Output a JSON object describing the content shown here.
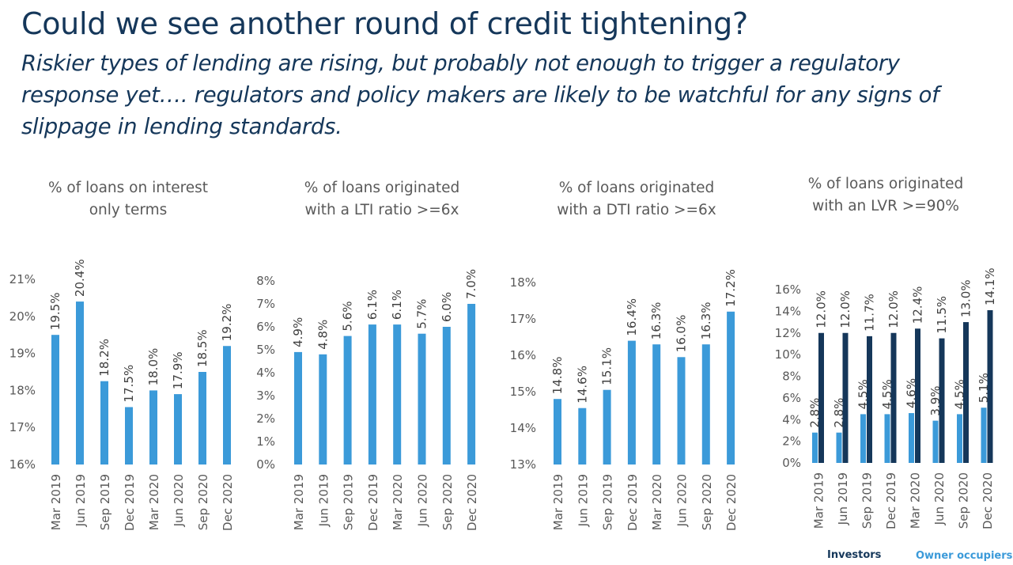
{
  "header": {
    "title": "Could we see another round of credit tightening?",
    "subtitle": "Riskier types of lending are rising, but probably not enough to trigger a regulatory response yet….  regulators and policy makers are likely to be watchful for any signs of slippage in lending standards."
  },
  "colors": {
    "light_blue": "#3b9ad9",
    "dark_navy": "#15375a",
    "text": "#595959"
  },
  "chart_data": [
    {
      "type": "bar",
      "title": [
        "% of loans on interest",
        "only terms"
      ],
      "categories": [
        "Mar 2019",
        "Jun 2019",
        "Sep 2019",
        "Dec 2019",
        "Mar 2020",
        "Jun 2020",
        "Sep 2020",
        "Dec 2020"
      ],
      "values": [
        19.5,
        20.4,
        18.25,
        17.55,
        18.0,
        17.9,
        18.5,
        19.2
      ],
      "labels": [
        "19.5%",
        "20.4%",
        "18.2%",
        "17.5%",
        "18.0%",
        "17.9%",
        "18.5%",
        "19.2%"
      ],
      "ylim": [
        16,
        21
      ],
      "yticks": [
        16,
        17,
        18,
        19,
        20,
        21
      ],
      "ytick_labels": [
        "16%",
        "17%",
        "18%",
        "19%",
        "20%",
        "21%"
      ]
    },
    {
      "type": "bar",
      "title": [
        "% of loans originated",
        "with a LTI ratio >=6x"
      ],
      "categories": [
        "Mar 2019",
        "Jun 2019",
        "Sep 2019",
        "Dec 2019",
        "Mar 2020",
        "Jun 2020",
        "Sep 2020",
        "Dec 2020"
      ],
      "values": [
        4.9,
        4.8,
        5.6,
        6.1,
        6.1,
        5.7,
        6.0,
        7.0
      ],
      "labels": [
        "4.9%",
        "4.8%",
        "5.6%",
        "6.1%",
        "6.1%",
        "5.7%",
        "6.0%",
        "7.0%"
      ],
      "ylim": [
        0,
        8
      ],
      "yticks": [
        0,
        1,
        2,
        3,
        4,
        5,
        6,
        7,
        8
      ],
      "ytick_labels": [
        "0%",
        "1%",
        "2%",
        "3%",
        "4%",
        "5%",
        "6%",
        "7%",
        "8%"
      ]
    },
    {
      "type": "bar",
      "title": [
        "% of loans originated",
        "with a DTI ratio >=6x"
      ],
      "categories": [
        "Mar 2019",
        "Jun 2019",
        "Sep 2019",
        "Dec 2019",
        "Mar 2020",
        "Jun 2020",
        "Sep 2020",
        "Dec 2020"
      ],
      "values": [
        14.8,
        14.55,
        15.05,
        16.4,
        16.3,
        15.95,
        16.3,
        17.2
      ],
      "labels": [
        "14.8%",
        "14.6%",
        "15.1%",
        "16.4%",
        "16.3%",
        "16.0%",
        "16.3%",
        "17.2%"
      ],
      "ylim": [
        13,
        18
      ],
      "yticks": [
        13,
        14,
        15,
        16,
        17,
        18
      ],
      "ytick_labels": [
        "13%",
        "14%",
        "15%",
        "16%",
        "17%",
        "18%"
      ]
    },
    {
      "type": "bar",
      "title": [
        "% of loans originated",
        "with an LVR >=90%"
      ],
      "categories": [
        "Mar 2019",
        "Jun 2019",
        "Sep 2019",
        "Dec 2019",
        "Mar 2020",
        "Jun 2020",
        "Sep 2020",
        "Dec 2020"
      ],
      "ylim": [
        0,
        16
      ],
      "yticks": [
        0,
        2,
        4,
        6,
        8,
        10,
        12,
        14,
        16
      ],
      "ytick_labels": [
        "0%",
        "2%",
        "4%",
        "6%",
        "8%",
        "10%",
        "12%",
        "14%",
        "16%"
      ],
      "series": [
        {
          "name": "Owner occupiers",
          "values": [
            2.8,
            2.8,
            4.5,
            4.5,
            4.6,
            3.9,
            4.5,
            5.1
          ],
          "labels": [
            "2.8%",
            "2.8%",
            "4.5%",
            "4.5%",
            "4.6%",
            "3.9%",
            "4.5%",
            "5.1%"
          ]
        },
        {
          "name": "Investors",
          "values": [
            12.0,
            12.0,
            11.7,
            12.0,
            12.4,
            11.5,
            13.0,
            14.1
          ],
          "labels": [
            "12.0%",
            "12.0%",
            "11.7%",
            "12.0%",
            "12.4%",
            "11.5%",
            "13.0%",
            "14.1%"
          ]
        }
      ],
      "legend": [
        "Investors",
        "Owner occupiers"
      ]
    }
  ]
}
